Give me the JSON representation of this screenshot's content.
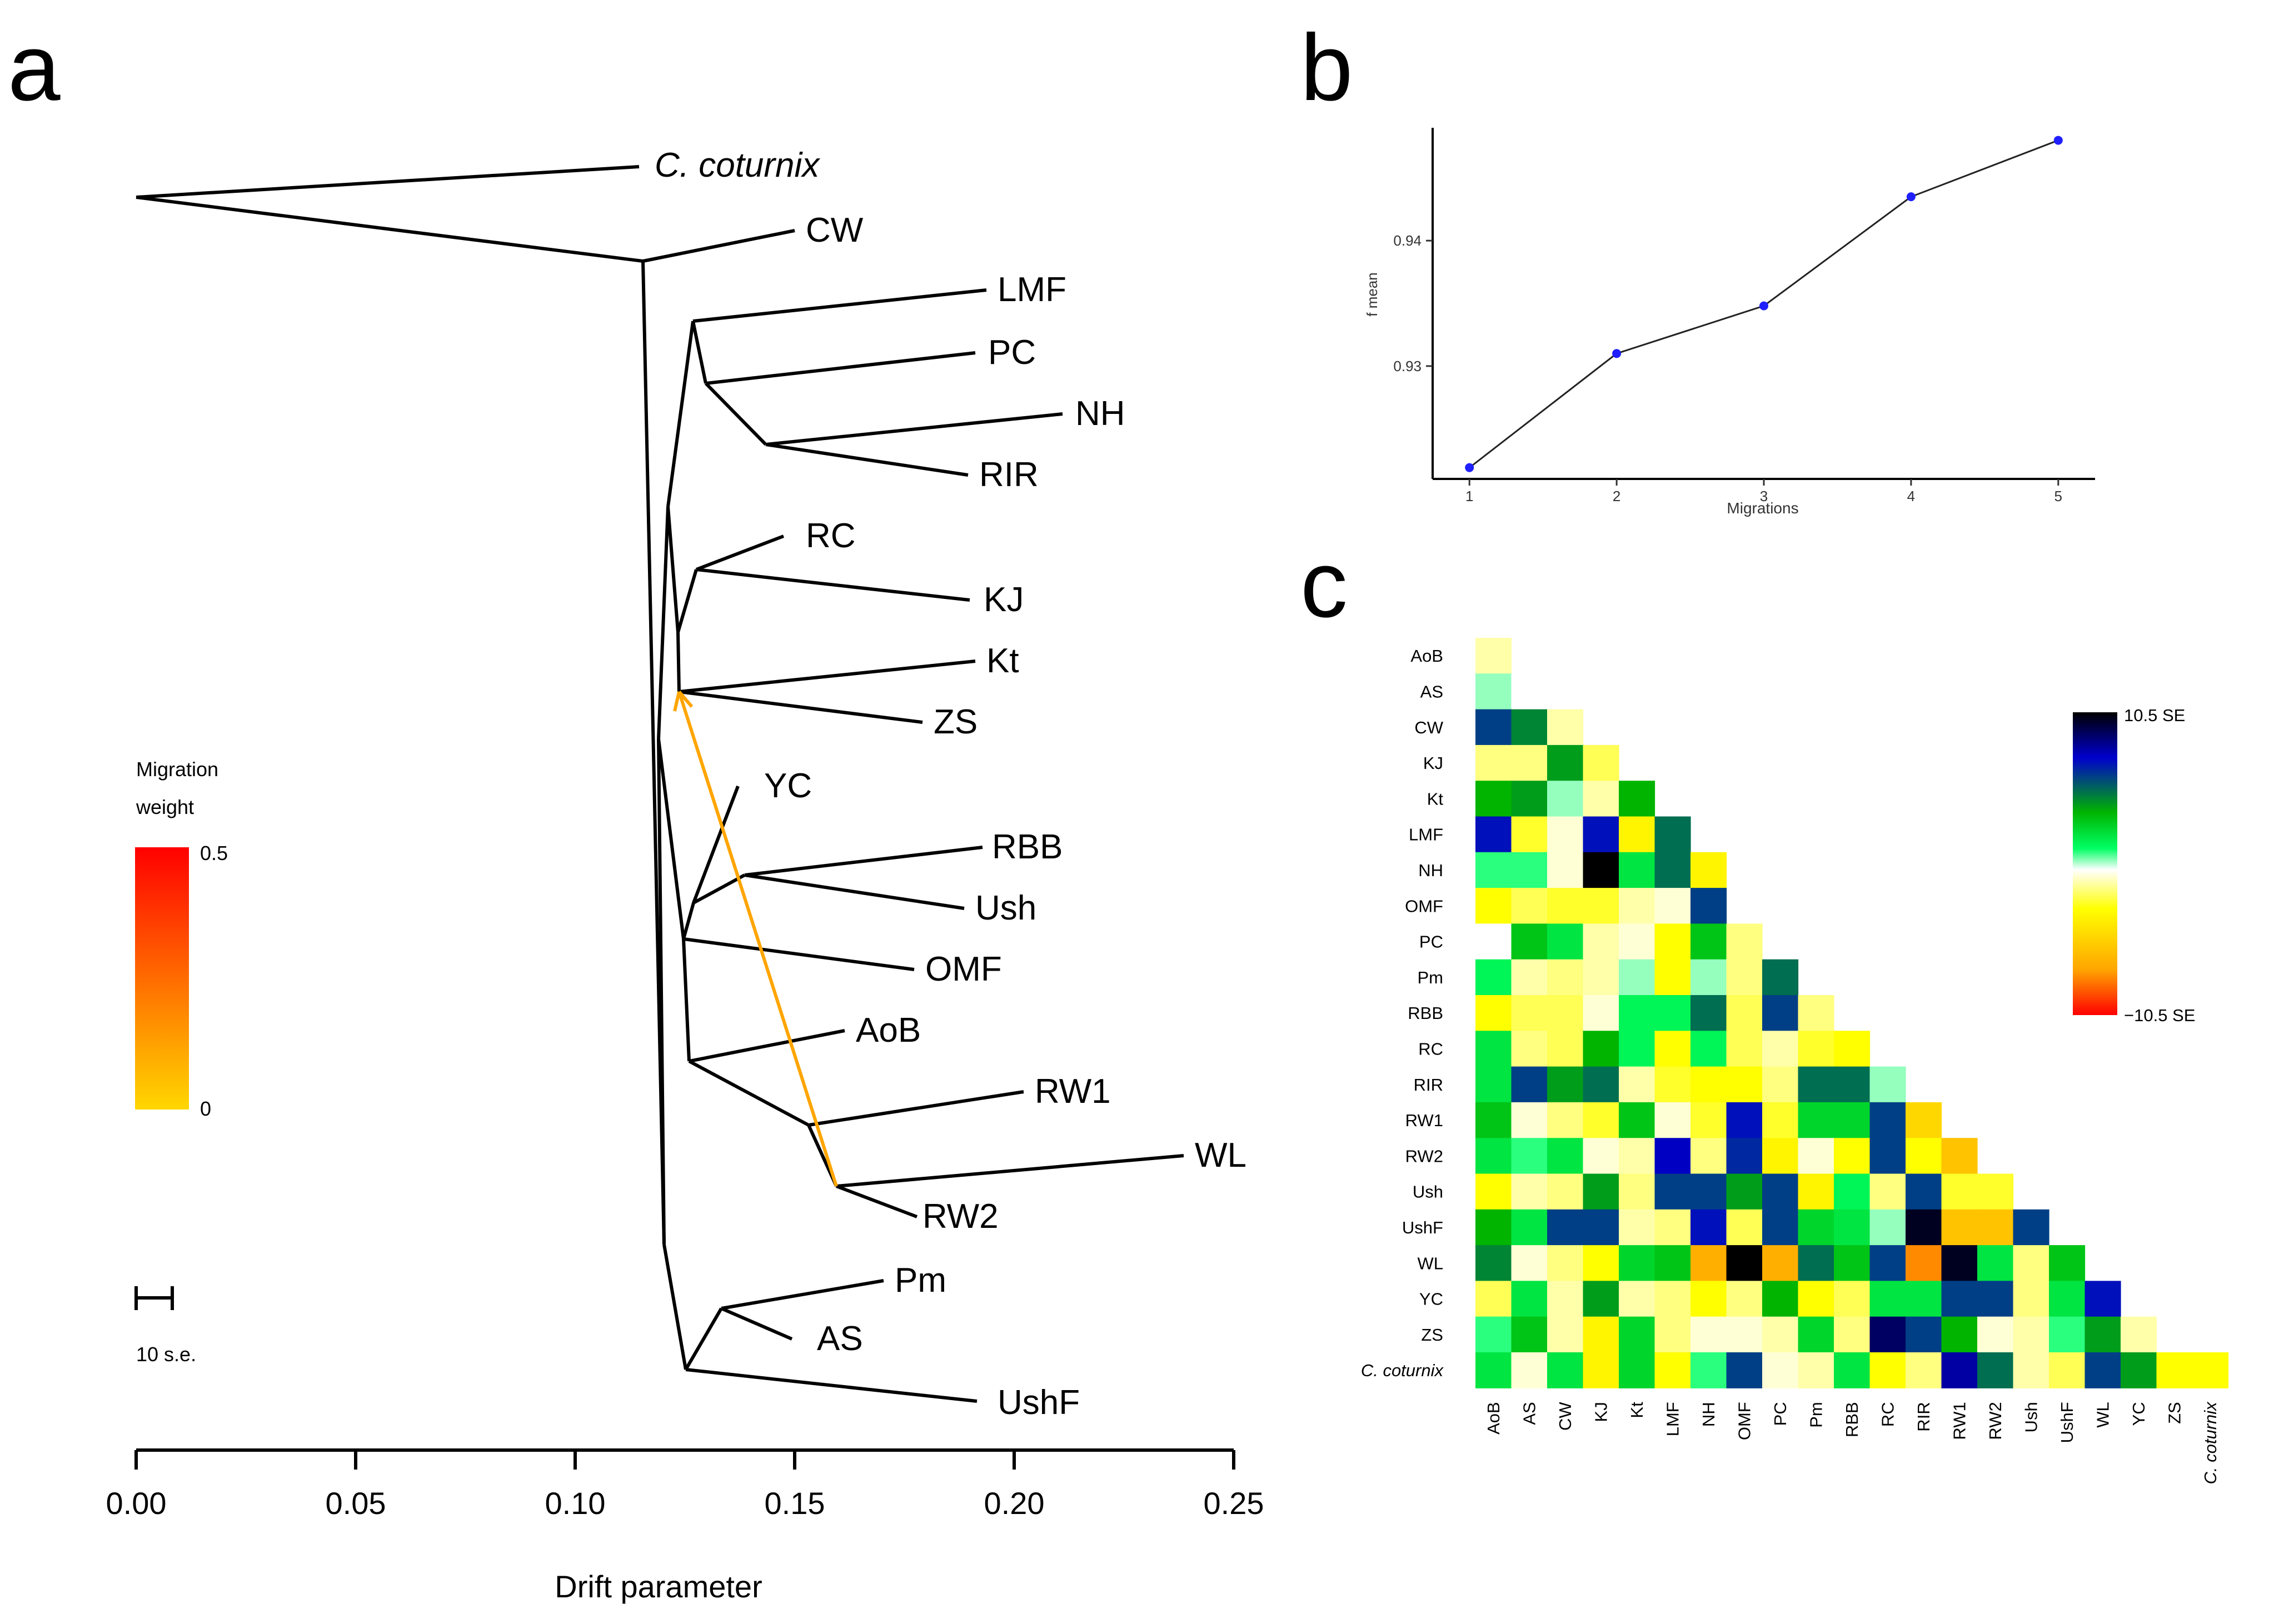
{
  "panel_labels": [
    "a",
    "b",
    "c"
  ],
  "chart_data": [
    {
      "type": "tree",
      "panel": "a",
      "xlabel": "Drift parameter",
      "xlim": [
        0,
        0.25
      ],
      "xticks": [
        0.0,
        0.05,
        0.1,
        0.15,
        0.2,
        0.25
      ],
      "tick_labels": [
        "0.00",
        "0.05",
        "0.10",
        "0.15",
        "0.20",
        "0.25"
      ],
      "leaves": [
        "C. coturnix",
        "CW",
        "LMF",
        "PC",
        "NH",
        "RIR",
        "RC",
        "KJ",
        "Kt",
        "ZS",
        "YC",
        "RBB",
        "Ush",
        "OMF",
        "AoB",
        "RW1",
        "WL",
        "RW2",
        "Pm",
        "AS",
        "UshF"
      ],
      "migration_edge": {
        "from": "RW2 / WL ancestor",
        "to": "Kt / ZS ancestor",
        "weight_color": "#ffa500"
      },
      "migration_legend": {
        "title_line1": "Migration",
        "title_line2": "weight",
        "max_label": "0.5",
        "min_label": "0",
        "colors": [
          "#ffd700",
          "#ff0000"
        ]
      },
      "scale_bar_label": "10 s.e."
    },
    {
      "type": "line",
      "panel": "b",
      "xlabel": "Migrations",
      "ylabel": "f mean",
      "x": [
        1,
        2,
        3,
        4,
        5
      ],
      "y": [
        0.9219,
        0.931,
        0.9348,
        0.9435,
        0.948
      ],
      "xlim": [
        0.75,
        5.25
      ],
      "ylim": [
        0.921,
        0.949
      ],
      "yticks": [
        0.93,
        0.94
      ],
      "ytick_labels": [
        "0.93",
        "0.94"
      ],
      "xtick_labels": [
        "1",
        "2",
        "3",
        "4",
        "5"
      ],
      "point_color": "#1f1fff"
    },
    {
      "type": "heatmap",
      "panel": "c",
      "labels": [
        "AoB",
        "AS",
        "CW",
        "KJ",
        "Kt",
        "LMF",
        "NH",
        "OMF",
        "PC",
        "Pm",
        "RBB",
        "RC",
        "RIR",
        "RW1",
        "RW2",
        "Ush",
        "UshF",
        "WL",
        "YC",
        "ZS",
        "C. coturnix"
      ],
      "range": [
        -10.5,
        10.5
      ],
      "colorbar_labels": [
        "10.5 SE",
        "−10.5 SE"
      ],
      "colorbar_colors": [
        "#000000",
        "#0000cd",
        "#00b400",
        "#00ff64",
        "#ffffff",
        "#ffff00",
        "#ffa500",
        "#ff0000"
      ],
      "rows": [
        [
          1
        ],
        [
          0.5,
          0
        ],
        [
          6,
          4.5,
          1
        ],
        [
          1.5,
          1.5,
          4,
          2
        ],
        [
          3.5,
          4,
          0.5,
          1,
          3.5
        ],
        [
          7,
          2.5,
          0.5,
          7,
          3.5,
          5
        ],
        [
          1,
          1,
          0.5,
          10.5,
          2,
          5,
          3.5
        ],
        [
          3,
          2,
          2.5,
          2.5,
          1,
          0.5,
          6
        ],
        [
          0,
          3,
          2,
          1,
          0.5,
          3,
          3,
          1.5
        ],
        [
          1.5,
          1,
          1.5,
          1,
          0.5,
          3,
          0.5,
          1.5,
          5
        ],
        [
          3,
          2,
          2,
          0.5,
          1.5,
          1.5,
          5,
          2,
          6,
          1.5
        ],
        [
          2,
          1.5,
          2,
          3.5,
          1.5,
          3,
          1.5,
          2,
          1,
          2.5,
          3
        ],
        [
          2,
          6,
          4,
          5,
          1,
          2.5,
          3,
          3,
          1.5,
          5,
          5,
          0.5
        ],
        [
          3,
          0.5,
          1.5,
          2.5,
          3,
          0.5,
          2.5,
          7,
          2.5,
          2.5,
          2.5,
          6,
          5
        ],
        [
          2,
          1,
          2,
          0.5,
          1,
          7.5,
          1.5,
          6.5,
          3.5,
          0.5,
          3,
          6,
          3,
          6
        ],
        [
          3,
          1,
          1.5,
          4,
          1.5,
          6,
          6,
          4,
          6,
          3.5,
          1.5,
          1.5,
          6,
          2.5,
          2.5
        ],
        [
          3.5,
          2,
          6,
          6,
          1,
          1.5,
          7,
          2,
          6,
          2.5,
          2,
          0.5,
          10,
          6,
          6,
          6
        ],
        [
          4.5,
          0.5,
          1.5,
          3,
          2.5,
          3,
          7,
          10.5,
          7,
          5,
          3,
          6,
          8,
          10,
          2,
          1.5,
          3
        ],
        [
          2,
          2,
          1,
          4,
          1,
          1.5,
          3,
          1.5,
          3.5,
          3,
          2,
          2,
          2,
          6,
          6,
          1.5,
          2,
          7
        ],
        [
          1,
          3,
          1,
          3.5,
          2.5,
          1.5,
          0.5,
          0.5,
          1,
          2.5,
          1.5,
          9,
          6,
          3.5,
          0.5,
          1,
          1,
          4,
          1
        ],
        [
          2,
          0.5,
          2,
          3.5,
          2.5,
          3,
          1,
          6,
          0.5,
          1,
          2,
          3,
          1.5,
          8,
          5,
          1,
          2,
          6,
          4,
          3,
          3
        ]
      ],
      "signs": [
        [
          -1
        ],
        [
          1,
          0
        ],
        [
          1,
          1,
          -1
        ],
        [
          -1,
          -1,
          1,
          -1
        ],
        [
          1,
          1,
          1,
          -1,
          1
        ],
        [
          1,
          -1,
          -1,
          1,
          -1,
          1
        ],
        [
          1,
          1,
          -1,
          1,
          1,
          1,
          -1
        ],
        [
          -1,
          -1,
          -1,
          -1,
          -1,
          -1,
          1
        ],
        [
          0,
          1,
          1,
          -1,
          -1,
          -1,
          1,
          -1
        ],
        [
          1,
          -1,
          -1,
          -1,
          1,
          -1,
          1,
          -1,
          1
        ],
        [
          -1,
          -1,
          -1,
          -1,
          1,
          1,
          1,
          -1,
          1,
          -1
        ],
        [
          1,
          -1,
          -1,
          1,
          1,
          -1,
          1,
          -1,
          -1,
          -1,
          -1
        ],
        [
          1,
          1,
          1,
          1,
          -1,
          -1,
          -1,
          -1,
          -1,
          1,
          1,
          1
        ],
        [
          1,
          -1,
          -1,
          -1,
          1,
          -1,
          -1,
          1,
          -1,
          1,
          1,
          1,
          -1
        ],
        [
          1,
          1,
          1,
          -1,
          -1,
          1,
          -1,
          1,
          -1,
          -1,
          -1,
          1,
          -1,
          -1
        ],
        [
          -1,
          -1,
          -1,
          1,
          -1,
          1,
          1,
          1,
          1,
          -1,
          1,
          -1,
          1,
          -1,
          -1
        ],
        [
          1,
          1,
          1,
          1,
          -1,
          -1,
          1,
          -1,
          1,
          1,
          1,
          1,
          1,
          -1,
          -1,
          1
        ],
        [
          1,
          -1,
          -1,
          -1,
          1,
          1,
          -1,
          1,
          -1,
          1,
          1,
          1,
          -1,
          1,
          1,
          -1,
          1
        ],
        [
          -1,
          1,
          -1,
          1,
          -1,
          -1,
          -1,
          -1,
          1,
          -1,
          -1,
          1,
          1,
          1,
          1,
          -1,
          1,
          1
        ],
        [
          1,
          1,
          -1,
          -1,
          1,
          -1,
          -1,
          -1,
          -1,
          1,
          -1,
          1,
          1,
          1,
          -1,
          -1,
          1,
          1,
          -1
        ],
        [
          1,
          -1,
          1,
          -1,
          1,
          -1,
          1,
          1,
          -1,
          -1,
          1,
          -1,
          -1,
          1,
          1,
          -1,
          -1,
          1,
          1,
          -1,
          -1
        ]
      ]
    }
  ]
}
